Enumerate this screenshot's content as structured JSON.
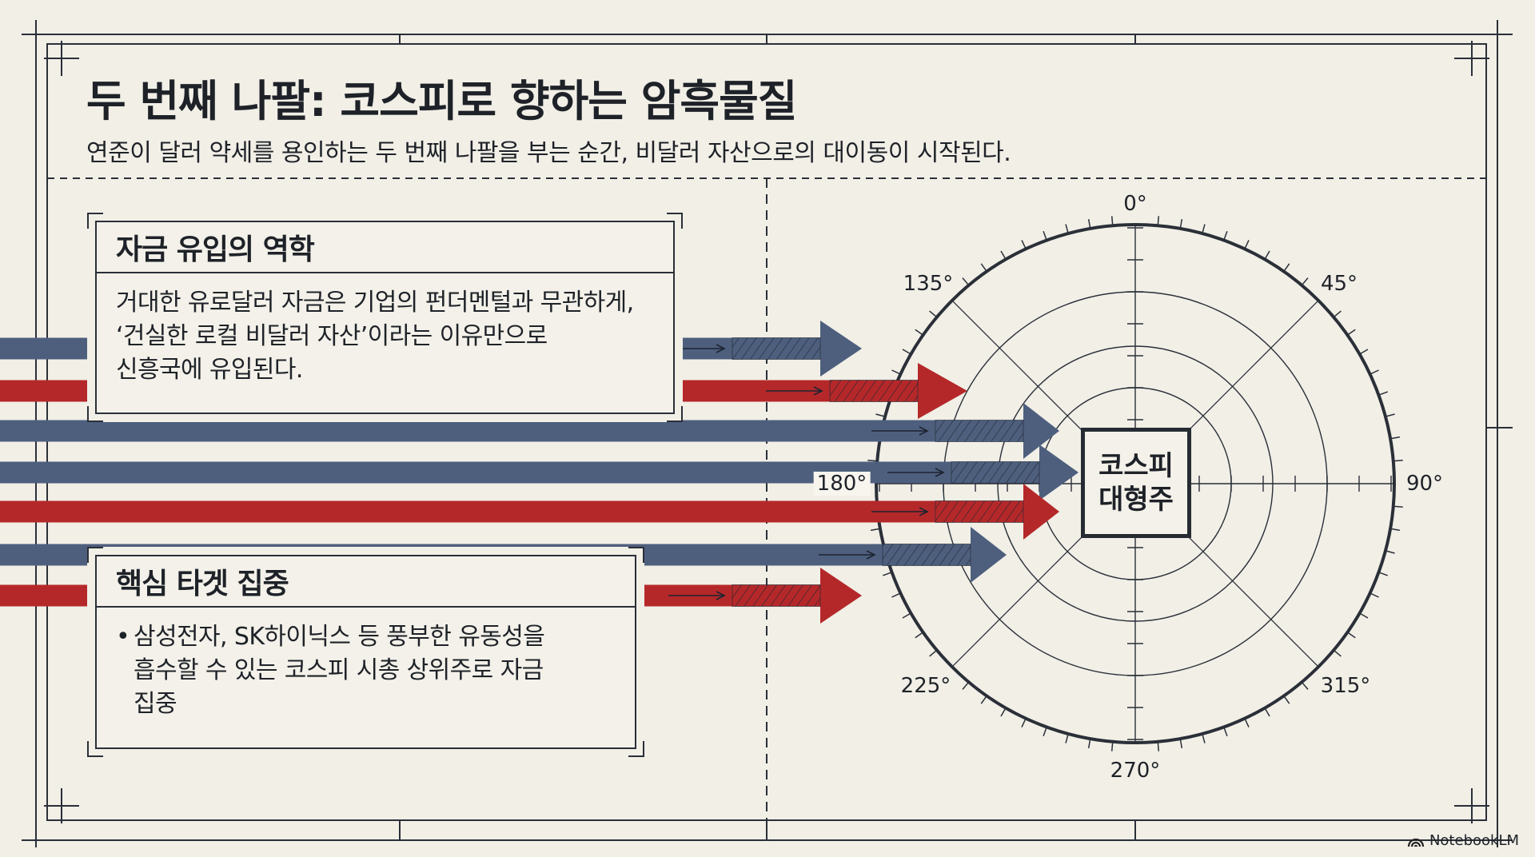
{
  "title": "두 번째 나팔: 코스피로 향하는 암흑물질",
  "subtitle": "연준이 달러 약세를 용인하는 두 번째 나팔을 부는 순간, 비달러 자산으로의 대이동이 시작된다.",
  "box1": {
    "heading": "자금 유입의 역학",
    "lines": [
      "거대한 유로달러 자금은 기업의 펀더멘털과 무관하게,",
      "‘건실한 로컬 비달러 자산’이라는 이유만으로",
      "신흥국에 유입된다."
    ]
  },
  "box2": {
    "heading": "핵심 타겟 집중",
    "bullet_lines": [
      "삼성전자, SK하이닉스 등 풍부한 유동성을",
      "흡수할 수 있는 코스피 시총 상위주로 자금",
      "집중"
    ]
  },
  "compass": {
    "center_label": [
      "코스피",
      "대형주"
    ],
    "angles": [
      "0°",
      "45°",
      "90°",
      "135°",
      "180°",
      "225°",
      "270°",
      "315°"
    ]
  },
  "colors": {
    "blue_arrow": "#4e5f7e",
    "red_arrow": "#b5282a",
    "background": "#f1efe6",
    "line": "#2a2f38"
  },
  "brand": {
    "icon": "notebooklm-logo-icon",
    "name": "NotebookLM"
  }
}
